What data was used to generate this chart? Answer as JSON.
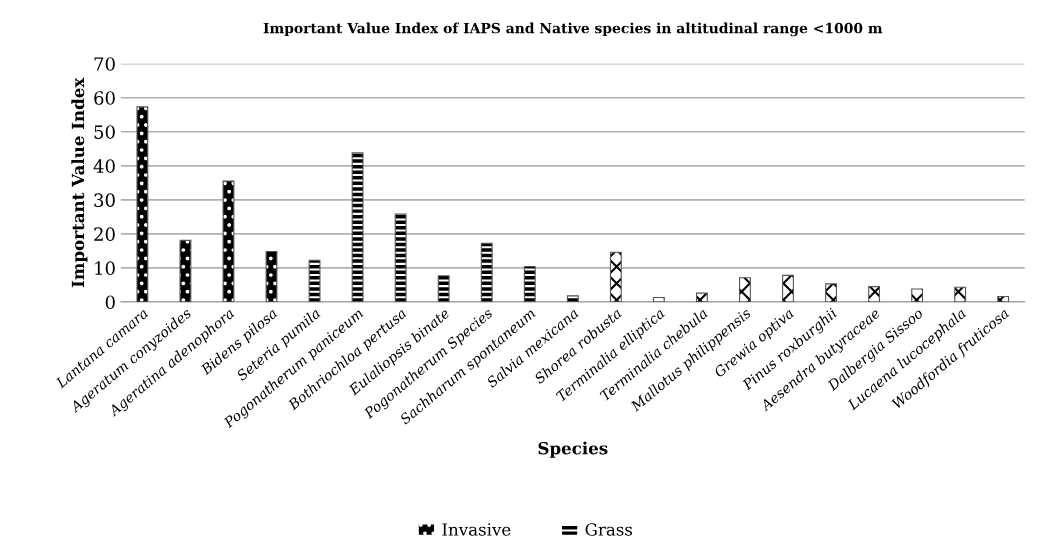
{
  "chart_data": {
    "type": "bar",
    "title": "Important Value Index of IAPS and Native species in altitudinal range <1000 m",
    "xlabel": "Species",
    "ylabel": "Important Value Index",
    "categories": [
      "Lantana camara",
      "Ageratum conyzoides",
      "Ageratina adenophora",
      "Bidens pilosa",
      "Seteria pumila",
      "Pogonatherum paniceum",
      "Bothriochloa pertusa",
      "Eulaliopsis binate",
      "Pogonatherum Species",
      "Sachharum spontaneum",
      "Salvia mexicana",
      "Shorea robusta",
      "Terminalia elliptica",
      "Terminalia chebula",
      "Mallotus philippensis",
      "Grewia optiva",
      "Pinus roxburghii",
      "Aesendra butyraceae",
      "Dalbergia Sissoo",
      "Lucaena lucocephala",
      "Woodfordia fruticosa"
    ],
    "series": [
      {
        "name": "Invasive",
        "color": "#000000",
        "values": [
          57.3,
          18.1,
          35.5,
          14.8,
          null,
          null,
          null,
          null,
          null,
          null,
          null,
          null,
          null,
          null,
          null,
          null,
          null,
          null,
          null,
          null,
          null
        ]
      },
      {
        "name": "Grass",
        "color": "#000000",
        "values": [
          null,
          null,
          null,
          null,
          12.2,
          43.8,
          25.8,
          7.7,
          17.2,
          10.4,
          1.8,
          null,
          null,
          null,
          null,
          null,
          null,
          null,
          null,
          null,
          null
        ]
      },
      {
        "color": "#ffffff",
        "values": [
          null,
          null,
          null,
          null,
          null,
          null,
          null,
          null,
          null,
          null,
          null,
          14.6,
          1.3,
          2.6,
          7.1,
          7.8,
          5.3,
          4.5,
          3.8,
          4.3,
          1.6
        ]
      }
    ],
    "ylim": [
      0,
      70
    ],
    "yticks": [
      0,
      10,
      20,
      30,
      40,
      50,
      60,
      70
    ],
    "grid": "y",
    "legend": "bottom"
  }
}
